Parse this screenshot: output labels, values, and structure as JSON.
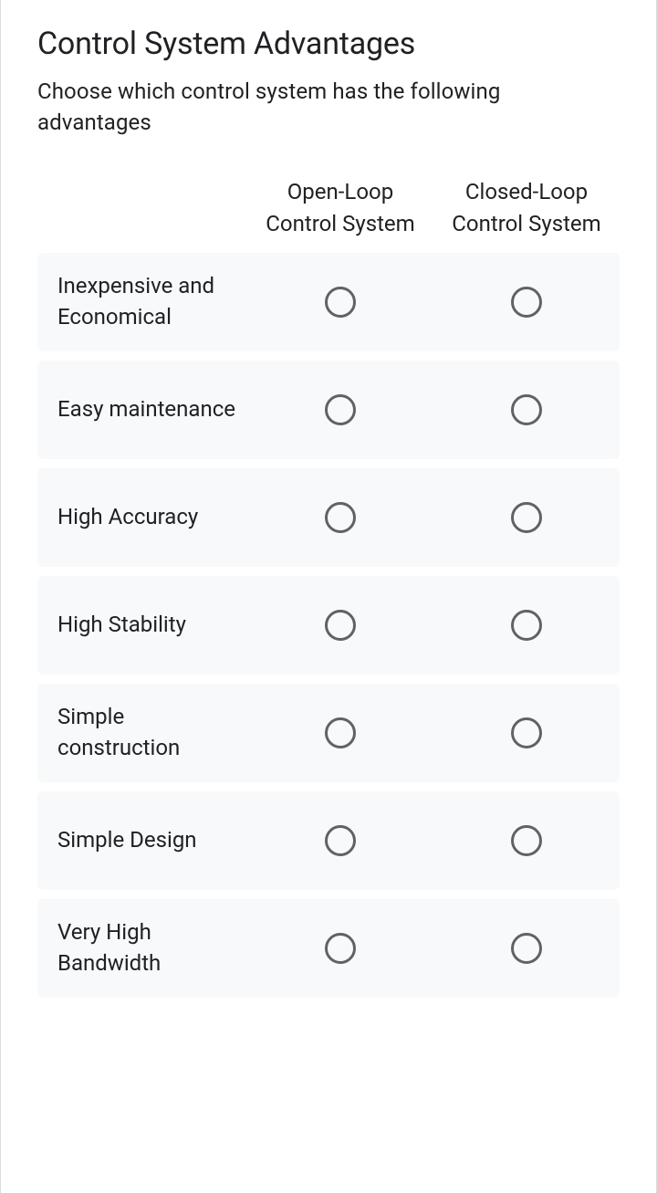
{
  "title": "Control System Advantages",
  "subtitle": "Choose which control system has the following advantages",
  "columns": [
    {
      "label": "Open-Loop Control System",
      "slug": "open-loop"
    },
    {
      "label": "Closed-Loop Control System",
      "slug": "closed-loop"
    }
  ],
  "rows": [
    {
      "label": "Inexpensive and Economical",
      "slug": "inexpensive"
    },
    {
      "label": "Easy maintenance",
      "slug": "easy-maintenance"
    },
    {
      "label": "High Accuracy",
      "slug": "high-accuracy"
    },
    {
      "label": "High Stability",
      "slug": "high-stability"
    },
    {
      "label": "Simple construction",
      "slug": "simple-construction"
    },
    {
      "label": "Simple Design",
      "slug": "simple-design"
    },
    {
      "label": "Very High Bandwidth",
      "slug": "very-high-bandwidth"
    }
  ],
  "colors": {
    "text": "#202124",
    "row_bg": "#f8f9fa",
    "radio_border": "#5f6368",
    "card_border": "#dadce0"
  }
}
